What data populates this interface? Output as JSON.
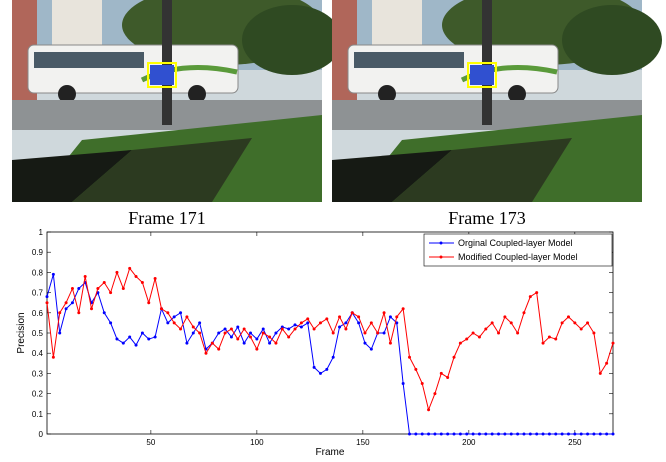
{
  "captions": [
    "Frame 171",
    "Frame 173"
  ],
  "chart_data": {
    "type": "line",
    "xlabel": "Frame",
    "ylabel": "Precision",
    "x": [
      1,
      4,
      7,
      10,
      13,
      16,
      19,
      22,
      25,
      28,
      31,
      34,
      37,
      40,
      43,
      46,
      49,
      52,
      55,
      58,
      61,
      64,
      67,
      70,
      73,
      76,
      79,
      82,
      85,
      88,
      91,
      94,
      97,
      100,
      103,
      106,
      109,
      112,
      115,
      118,
      121,
      124,
      127,
      130,
      133,
      136,
      139,
      142,
      145,
      148,
      151,
      154,
      157,
      160,
      163,
      166,
      169,
      172,
      175,
      178,
      181,
      184,
      187,
      190,
      193,
      196,
      199,
      202,
      205,
      208,
      211,
      214,
      217,
      220,
      223,
      226,
      229,
      232,
      235,
      238,
      241,
      244,
      247,
      250,
      253,
      256,
      259,
      262,
      265,
      268
    ],
    "series": [
      {
        "name": "Orginal Coupled-layer Model",
        "color": "#0000ff",
        "values": [
          0.68,
          0.79,
          0.5,
          0.62,
          0.65,
          0.72,
          0.75,
          0.65,
          0.7,
          0.6,
          0.55,
          0.47,
          0.45,
          0.48,
          0.44,
          0.5,
          0.47,
          0.48,
          0.62,
          0.55,
          0.58,
          0.6,
          0.45,
          0.5,
          0.55,
          0.42,
          0.45,
          0.5,
          0.52,
          0.48,
          0.53,
          0.45,
          0.5,
          0.47,
          0.52,
          0.45,
          0.5,
          0.53,
          0.52,
          0.54,
          0.53,
          0.55,
          0.33,
          0.3,
          0.32,
          0.38,
          0.53,
          0.55,
          0.6,
          0.55,
          0.45,
          0.42,
          0.5,
          0.5,
          0.58,
          0.55,
          0.25,
          0,
          0,
          0,
          0,
          0,
          0,
          0,
          0,
          0,
          0,
          0,
          0,
          0,
          0,
          0,
          0,
          0,
          0,
          0,
          0,
          0,
          0,
          0,
          0,
          0,
          0,
          0,
          0,
          0,
          0,
          0,
          0,
          0
        ]
      },
      {
        "name": "Modified Coupled-layer Model",
        "color": "#ff0000",
        "values": [
          0.65,
          0.38,
          0.6,
          0.65,
          0.72,
          0.6,
          0.78,
          0.62,
          0.72,
          0.75,
          0.7,
          0.8,
          0.72,
          0.82,
          0.78,
          0.75,
          0.65,
          0.77,
          0.62,
          0.6,
          0.55,
          0.52,
          0.58,
          0.53,
          0.5,
          0.4,
          0.45,
          0.42,
          0.5,
          0.52,
          0.47,
          0.52,
          0.48,
          0.42,
          0.5,
          0.48,
          0.45,
          0.52,
          0.48,
          0.52,
          0.55,
          0.57,
          0.52,
          0.55,
          0.57,
          0.5,
          0.58,
          0.52,
          0.6,
          0.58,
          0.5,
          0.55,
          0.5,
          0.6,
          0.45,
          0.58,
          0.62,
          0.38,
          0.32,
          0.25,
          0.12,
          0.2,
          0.3,
          0.28,
          0.38,
          0.45,
          0.47,
          0.5,
          0.48,
          0.52,
          0.55,
          0.5,
          0.58,
          0.55,
          0.5,
          0.6,
          0.68,
          0.7,
          0.45,
          0.48,
          0.47,
          0.55,
          0.58,
          0.55,
          0.52,
          0.55,
          0.5,
          0.3,
          0.35,
          0.45
        ]
      }
    ],
    "xlim": [
      1,
      268
    ],
    "ylim": [
      0,
      1
    ],
    "xticks": [
      50,
      100,
      150,
      200,
      250
    ],
    "yticks": [
      0,
      0.1,
      0.2,
      0.3,
      0.4,
      0.5,
      0.6,
      0.7,
      0.8,
      0.9,
      1
    ],
    "legend": "upper right"
  }
}
